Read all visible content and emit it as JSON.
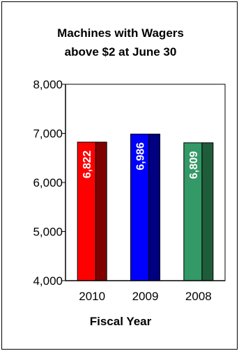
{
  "chart_data": {
    "type": "bar",
    "title_lines": [
      "Machines with Wagers",
      "above $2 at June 30"
    ],
    "xlabel": "Fiscal Year",
    "ylabel": "",
    "categories": [
      "2010",
      "2009",
      "2008"
    ],
    "values": [
      6822,
      6986,
      6809
    ],
    "data_labels": [
      "6,822",
      "6,986",
      "6,809"
    ],
    "ylim": [
      4000,
      8000
    ],
    "yticks": [
      4000,
      5000,
      6000,
      7000,
      8000
    ],
    "ytick_labels": [
      "4,000",
      "5,000",
      "6,000",
      "7,000",
      "8,000"
    ],
    "grid": false,
    "legend": false,
    "bar_style": "3d",
    "colors": {
      "front": [
        "#ff0000",
        "#0000ff",
        "#339966"
      ],
      "side": [
        "#800000",
        "#000080",
        "#1f5c3a"
      ],
      "label": "#ffffff",
      "axis": "#000000"
    }
  }
}
